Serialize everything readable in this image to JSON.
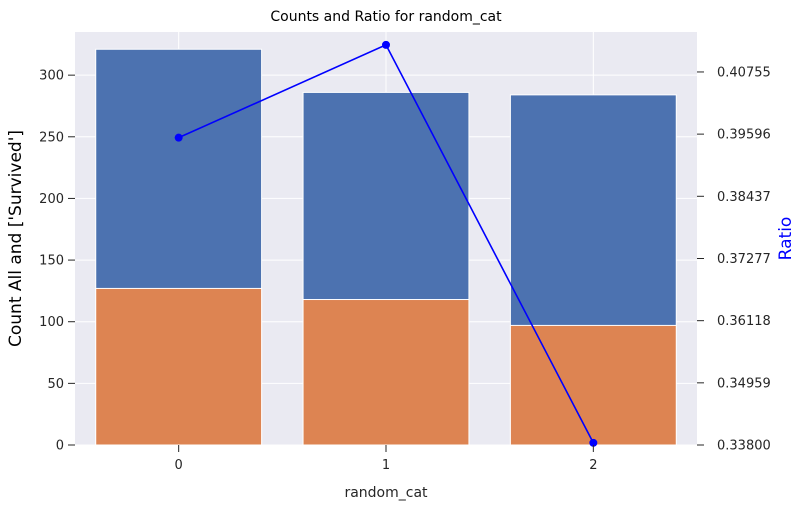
{
  "chart_data": {
    "type": "bar",
    "title": "Counts and Ratio for random_cat",
    "xlabel": "random_cat",
    "ylabel": "Count All and ['Survived']",
    "y2label": "Ratio",
    "categories": [
      "0",
      "1",
      "2"
    ],
    "ylim": [
      0,
      335
    ],
    "yticks": [
      0,
      50,
      100,
      150,
      200,
      250,
      300
    ],
    "y2lim": [
      0.338,
      0.415
    ],
    "y2ticks": [
      "0.33800",
      "0.34959",
      "0.36118",
      "0.37277",
      "0.38437",
      "0.39596",
      "0.40755"
    ],
    "grid": true,
    "series": [
      {
        "values": [
          321,
          286,
          284
        ],
        "color": "#4c72b0"
      },
      {
        "values": [
          127,
          118,
          97
        ],
        "color": "#dd8452"
      }
    ],
    "line_series": {
      "axis": "secondary",
      "values": [
        0.3953,
        0.4126,
        0.3384
      ],
      "color": "#0000ff"
    },
    "colors": {
      "plot_background": "#eaeaf2",
      "grid": "#ffffff",
      "y2label": "#0000ff"
    }
  }
}
